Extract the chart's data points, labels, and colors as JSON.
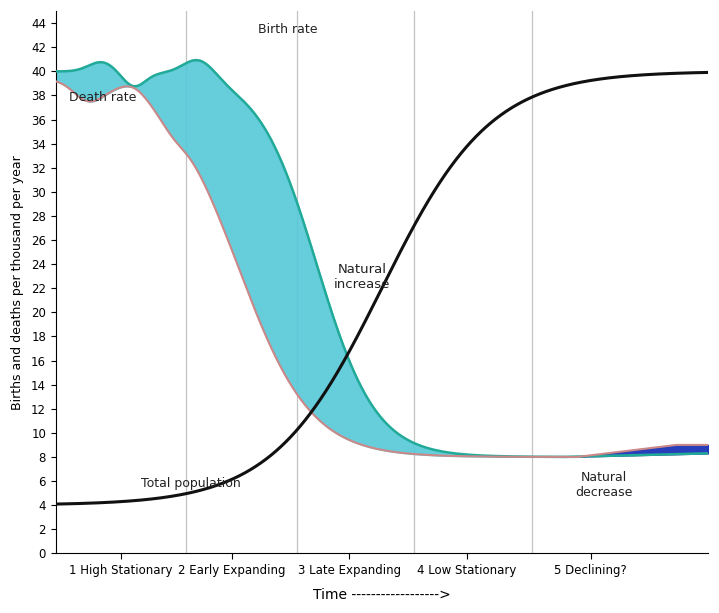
{
  "ylabel": "Births and deaths per thousand per year",
  "xlabel": "Time ------------------>",
  "ylim": [
    0,
    45
  ],
  "xlim": [
    0,
    100
  ],
  "yticks": [
    0,
    2,
    4,
    6,
    8,
    10,
    12,
    14,
    16,
    18,
    20,
    22,
    24,
    26,
    28,
    30,
    32,
    34,
    36,
    38,
    40,
    42,
    44
  ],
  "stage_labels": [
    "1 High Stationary",
    "2 Early Expanding",
    "3 Late Expanding",
    "4 Low Stationary",
    "5 Declining?"
  ],
  "stage_positions": [
    10,
    27,
    45,
    63,
    82
  ],
  "vline_positions": [
    20,
    37,
    55,
    73
  ],
  "birth_rate_color": "#55c8d8",
  "birth_rate_line_color": "#22aa99",
  "death_rate_color": "#e8a0a8",
  "death_rate_line_color": "#cc8888",
  "natural_decrease_color": "#1133bb",
  "total_pop_color": "#111111",
  "annotation_color": "#222222",
  "background_color": "#ffffff"
}
